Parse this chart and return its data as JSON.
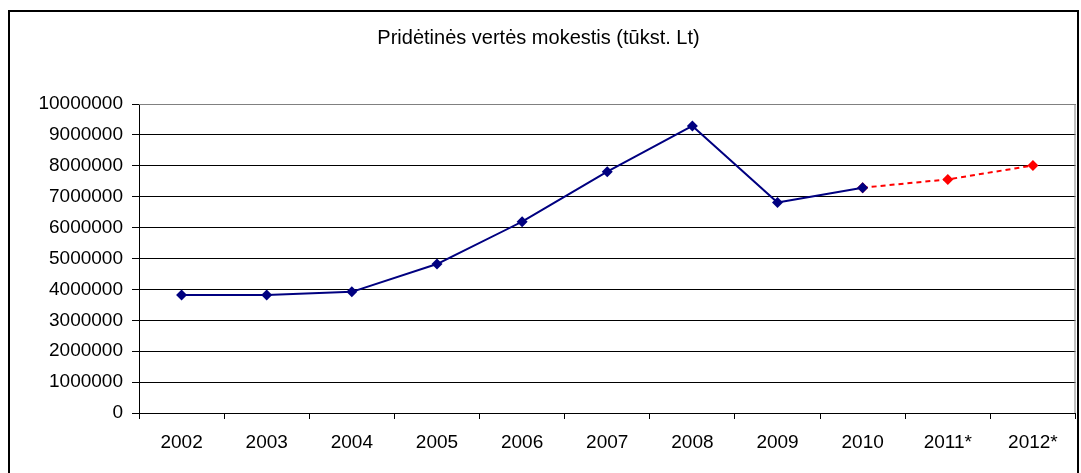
{
  "chart_data": {
    "type": "line",
    "title": "Pridėtinės vertės mokestis (tūkst. Lt)",
    "categories": [
      "2002",
      "2003",
      "2004",
      "2005",
      "2006",
      "2007",
      "2008",
      "2009",
      "2010",
      "2011*",
      "2012*"
    ],
    "series": [
      {
        "color": "#000080",
        "values": [
          3820000,
          3820000,
          3920000,
          4820000,
          6190000,
          7810000,
          9290000,
          6810000,
          7290000,
          null,
          null
        ]
      },
      {
        "color": "#ff0000",
        "line_style": "dashed",
        "values": [
          null,
          null,
          null,
          null,
          null,
          null,
          null,
          null,
          7290000,
          7560000,
          8010000
        ]
      }
    ],
    "ylim": [
      0,
      10000000
    ],
    "yticks": [
      0,
      1000000,
      2000000,
      3000000,
      4000000,
      5000000,
      6000000,
      7000000,
      8000000,
      9000000,
      10000000
    ],
    "grid": "y",
    "marker": "diamond"
  }
}
